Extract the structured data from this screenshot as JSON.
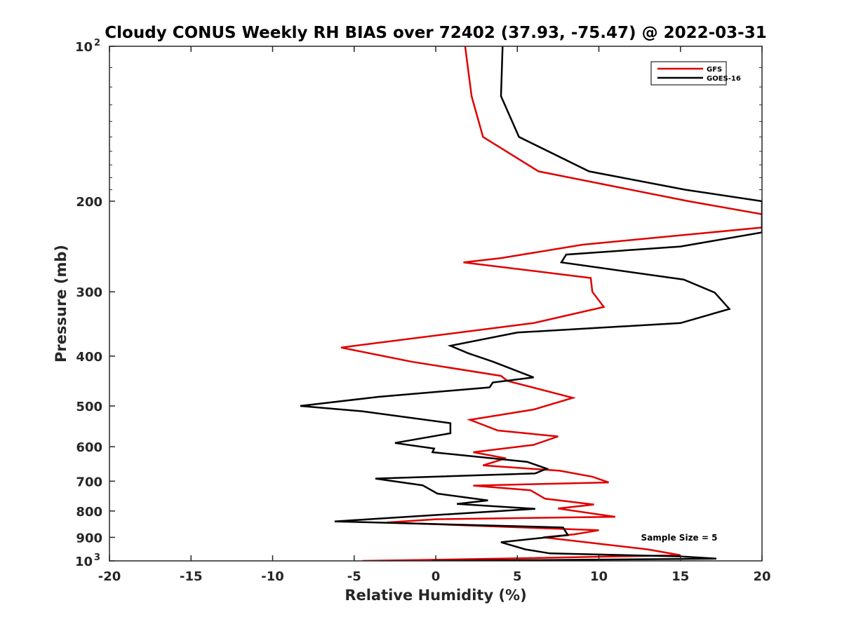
{
  "chart_data": {
    "type": "line",
    "title": "Cloudy CONUS Weekly RH BIAS over 72402 (37.93, -75.47) @ 2022-03-31",
    "xlabel": "Relative Humidity (%)",
    "ylabel": "Pressure (mb)",
    "xlim": [
      -20,
      20
    ],
    "ylim": [
      100,
      1000
    ],
    "yscale": "log",
    "y_reversed": true,
    "grid": false,
    "legend_position": "top-right",
    "x_ticks": [
      "-20",
      "-15",
      "-10",
      "-5",
      "0",
      "5",
      "10",
      "15",
      "20"
    ],
    "y_ticks": [
      {
        "value": 100,
        "base": "10",
        "exp": "2"
      },
      {
        "value": 200,
        "base": "200",
        "exp": ""
      },
      {
        "value": 300,
        "base": "300",
        "exp": ""
      },
      {
        "value": 400,
        "base": "400",
        "exp": ""
      },
      {
        "value": 500,
        "base": "500",
        "exp": ""
      },
      {
        "value": 600,
        "base": "600",
        "exp": ""
      },
      {
        "value": 700,
        "base": "700",
        "exp": ""
      },
      {
        "value": 800,
        "base": "800",
        "exp": ""
      },
      {
        "value": 900,
        "base": "900",
        "exp": ""
      },
      {
        "value": 1000,
        "base": "10",
        "exp": "3"
      }
    ],
    "series": [
      {
        "name": "GFS",
        "color": "#e00000",
        "points": [
          [
            1.8,
            100
          ],
          [
            2.2,
            125
          ],
          [
            2.9,
            150
          ],
          [
            6.3,
            175
          ],
          [
            15.5,
            200
          ],
          [
            20.0,
            212
          ],
          [
            20.0,
            225
          ],
          [
            15.0,
            233
          ],
          [
            9.0,
            243
          ],
          [
            4.0,
            258
          ],
          [
            1.7,
            263
          ],
          [
            9.5,
            282
          ],
          [
            9.6,
            300
          ],
          [
            10.3,
            321
          ],
          [
            6.0,
            345
          ],
          [
            -5.8,
            385
          ],
          [
            -1.5,
            410
          ],
          [
            4.0,
            437
          ],
          [
            4.4,
            447
          ],
          [
            8.4,
            482
          ],
          [
            6.0,
            508
          ],
          [
            2.1,
            532
          ],
          [
            3.8,
            558
          ],
          [
            7.5,
            573
          ],
          [
            6.0,
            595
          ],
          [
            2.3,
            615
          ],
          [
            4.3,
            632
          ],
          [
            2.9,
            652
          ],
          [
            7.6,
            668
          ],
          [
            9.6,
            686
          ],
          [
            10.6,
            704
          ],
          [
            2.3,
            714
          ],
          [
            5.8,
            729
          ],
          [
            6.7,
            757
          ],
          [
            9.7,
            777
          ],
          [
            7.5,
            791
          ],
          [
            11.0,
            821
          ],
          [
            0.0,
            830
          ],
          [
            -3.0,
            842
          ],
          [
            10.0,
            872
          ],
          [
            8.5,
            888
          ],
          [
            6.6,
            900
          ],
          [
            13.0,
            950
          ],
          [
            15.0,
            975
          ],
          [
            4.0,
            990
          ],
          [
            -4.5,
            1000
          ]
        ]
      },
      {
        "name": "GOES-16",
        "color": "#000000",
        "points": [
          [
            4.1,
            100
          ],
          [
            4.0,
            125
          ],
          [
            5.1,
            150
          ],
          [
            9.4,
            175
          ],
          [
            15.3,
            190
          ],
          [
            20.0,
            200
          ],
          [
            20.0,
            230
          ],
          [
            15.0,
            245
          ],
          [
            8.0,
            254
          ],
          [
            7.7,
            263
          ],
          [
            15.2,
            284
          ],
          [
            17.1,
            301
          ],
          [
            18.0,
            324
          ],
          [
            15.0,
            345
          ],
          [
            5.0,
            360
          ],
          [
            0.9,
            382
          ],
          [
            2.0,
            395
          ],
          [
            3.5,
            410
          ],
          [
            6.0,
            440
          ],
          [
            3.5,
            450
          ],
          [
            3.3,
            460
          ],
          [
            -3.5,
            480
          ],
          [
            -8.3,
            500
          ],
          [
            -4.5,
            512
          ],
          [
            0.9,
            540
          ],
          [
            0.9,
            565
          ],
          [
            -2.5,
            590
          ],
          [
            -0.1,
            605
          ],
          [
            -0.2,
            615
          ],
          [
            5.6,
            642
          ],
          [
            6.8,
            662
          ],
          [
            6.1,
            676
          ],
          [
            -3.7,
            692
          ],
          [
            -0.8,
            713
          ],
          [
            0.1,
            740
          ],
          [
            3.2,
            763
          ],
          [
            1.3,
            775
          ],
          [
            6.1,
            792
          ],
          [
            -2.0,
            822
          ],
          [
            -6.2,
            838
          ],
          [
            7.8,
            861
          ],
          [
            8.1,
            891
          ],
          [
            4.0,
            920
          ],
          [
            5.5,
            950
          ],
          [
            7.0,
            967
          ],
          [
            15.0,
            980
          ],
          [
            17.2,
            990
          ],
          [
            -0.2,
            1000
          ]
        ]
      }
    ],
    "annotations": [
      "Sample Size = 5"
    ]
  }
}
